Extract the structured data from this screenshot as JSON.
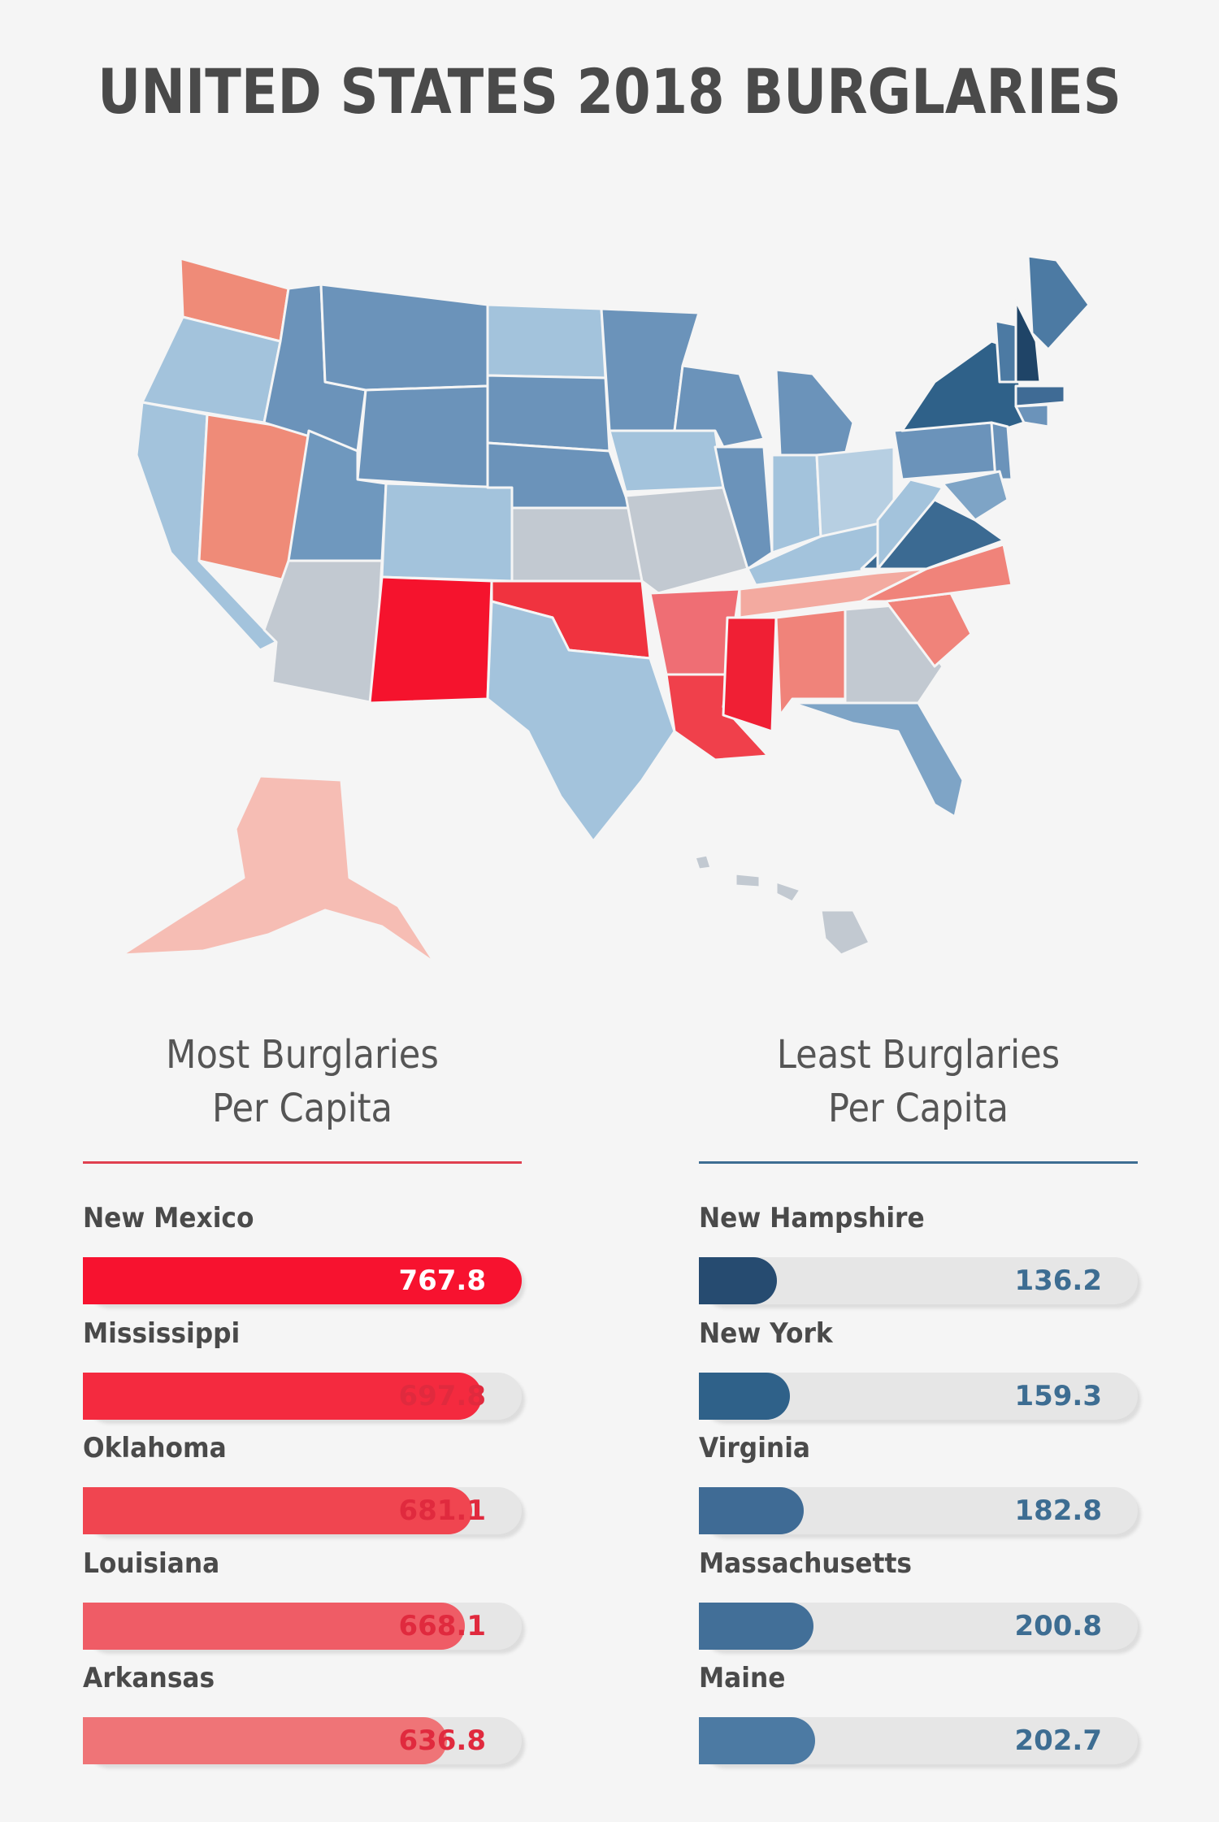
{
  "title": "UNITED STATES 2018 BURGLARIES",
  "colors": {
    "most_bar": [
      "#f7122f",
      "#f42a3f",
      "#f04550",
      "#ef5c66",
      "#ef7477"
    ],
    "least_bar": [
      "#264b70",
      "#2f6189",
      "#3f6b95",
      "#426f98",
      "#4c7aa3"
    ],
    "map_high": "#f5132d",
    "map_low": "#2e5c82",
    "track": "#e6e6e6"
  },
  "chart_data": [
    {
      "type": "bar",
      "title": "Most Burglaries Per Capita",
      "categories": [
        "New Mexico",
        "Mississippi",
        "Oklahoma",
        "Louisiana",
        "Arkansas"
      ],
      "values": [
        767.8,
        697.8,
        681.1,
        668.1,
        636.8
      ],
      "ylim": [
        0,
        767.8
      ]
    },
    {
      "type": "bar",
      "title": "Least Burglaries Per Capita",
      "categories": [
        "New Hampshire",
        "New York",
        "Virginia",
        "Massachusetts",
        "Maine"
      ],
      "values": [
        136.2,
        159.3,
        182.8,
        200.8,
        202.7
      ],
      "ylim": [
        0,
        767.8
      ]
    }
  ],
  "left_panel": {
    "heading_line1": "Most Burglaries",
    "heading_line2": "Per Capita",
    "rows": [
      {
        "label": "New Mexico",
        "value": "767.8"
      },
      {
        "label": "Mississippi",
        "value": "697.8"
      },
      {
        "label": "Oklahoma",
        "value": "681.1"
      },
      {
        "label": "Louisiana",
        "value": "668.1"
      },
      {
        "label": "Arkansas",
        "value": "636.8"
      }
    ]
  },
  "right_panel": {
    "heading_line1": "Least Burglaries",
    "heading_line2": "Per Capita",
    "rows": [
      {
        "label": "New Hampshire",
        "value": "136.2"
      },
      {
        "label": "New York",
        "value": "159.3"
      },
      {
        "label": "Virginia",
        "value": "182.8"
      },
      {
        "label": "Massachusetts",
        "value": "200.8"
      },
      {
        "label": "Maine",
        "value": "202.7"
      }
    ]
  }
}
